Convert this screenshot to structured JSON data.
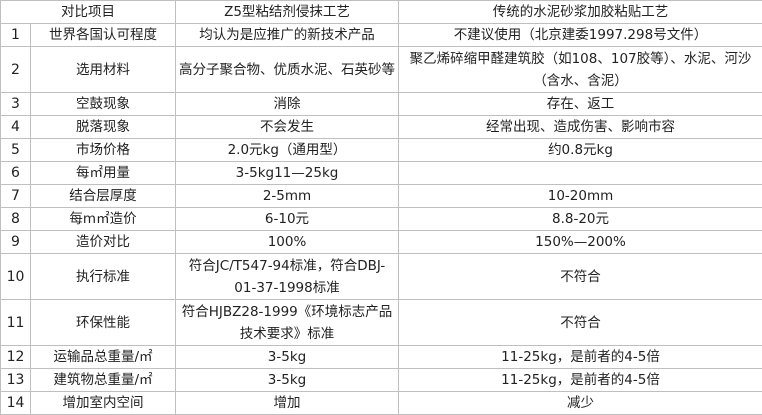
{
  "header": {
    "item": "对比项目",
    "z5": "Z5型粘结剂侵抹工艺",
    "traditional": "传统的水泥砂浆加胶粘贴工艺"
  },
  "rows": [
    {
      "no": "1",
      "item": "世界各国认可程度",
      "z5": "均认为是应推广的新技术产品",
      "traditional": "不建议使用（北京建委1997.298号文件）"
    },
    {
      "no": "2",
      "item": "选用材料",
      "z5": "高分子聚合物、优质水泥、石英砂等",
      "traditional": "聚乙烯碎缩甲醛建筑胶（如108、107胶等）、水泥、河沙（含水、含泥）"
    },
    {
      "no": "3",
      "item": "空鼓现象",
      "z5": "消除",
      "traditional": "存在、返工"
    },
    {
      "no": "4",
      "item": "脱落现象",
      "z5": "不会发生",
      "traditional": "经常出现、造成伤害、影响市容"
    },
    {
      "no": "5",
      "item": "市场价格",
      "z5": "2.0元kg（通用型）",
      "traditional": "约0.8元kg"
    },
    {
      "no": "6",
      "item": "每㎡用量",
      "z5": "3-5kg11—25kg",
      "traditional": ""
    },
    {
      "no": "7",
      "item": "结合层厚度",
      "z5": "2-5mm",
      "traditional": "10-20mm"
    },
    {
      "no": "8",
      "item": "每m㎡造价",
      "z5": "6-10元",
      "traditional": "8.8-20元"
    },
    {
      "no": "9",
      "item": "造价对比",
      "z5": "100%",
      "traditional": "150%—200%"
    },
    {
      "no": "10",
      "item": "执行标准",
      "z5": "符合JC/T547-94标准，符合DBJ-01-37-1998标准",
      "traditional": "不符合"
    },
    {
      "no": "11",
      "item": "环保性能",
      "z5": "符合HJBZ28-1999《环境标志产品技术要求》标准",
      "traditional": "不符合"
    },
    {
      "no": "12",
      "item": "运输品总重量/㎡",
      "z5": "3-5kg",
      "traditional": "11-25kg，是前者的4-5倍"
    },
    {
      "no": "13",
      "item": "建筑物总重量/㎡",
      "z5": "3-5kg",
      "traditional": "11-25kg，是前者的4-5倍"
    },
    {
      "no": "14",
      "item": "增加室内空间",
      "z5": "增加",
      "traditional": "减少"
    }
  ]
}
